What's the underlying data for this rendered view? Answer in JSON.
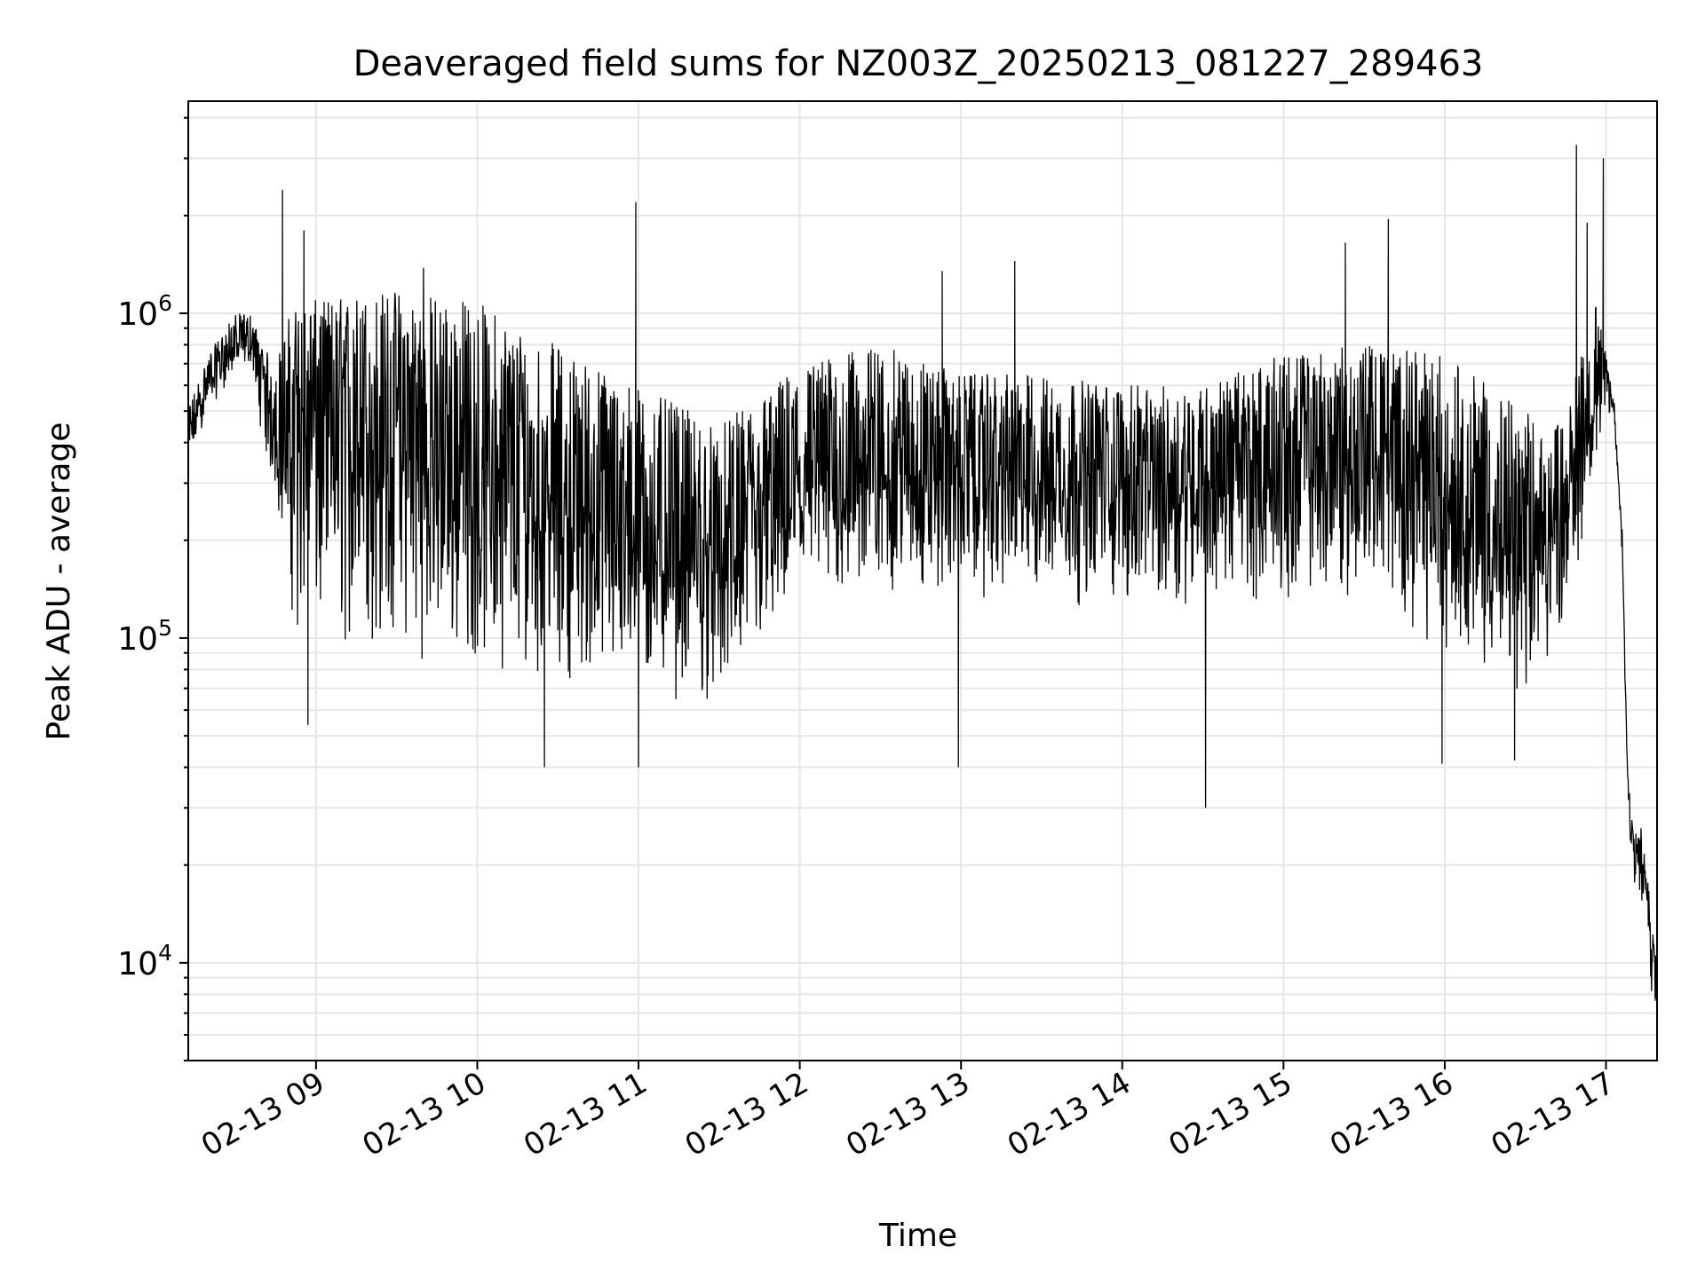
{
  "chart_data": {
    "type": "line",
    "title": "Deaveraged field sums for NZ003Z_20250213_081227_289463",
    "xlabel": "Time",
    "ylabel": "Peak ADU - average",
    "yscale": "log",
    "ylim": [
      5000,
      4500000
    ],
    "xlim": [
      "2025-02-13T08:12:27",
      "2025-02-13T17:19:00"
    ],
    "x_ticks": [
      {
        "value": "2025-02-13T09:00",
        "label": "02-13 09"
      },
      {
        "value": "2025-02-13T10:00",
        "label": "02-13 10"
      },
      {
        "value": "2025-02-13T11:00",
        "label": "02-13 11"
      },
      {
        "value": "2025-02-13T12:00",
        "label": "02-13 12"
      },
      {
        "value": "2025-02-13T13:00",
        "label": "02-13 13"
      },
      {
        "value": "2025-02-13T14:00",
        "label": "02-13 14"
      },
      {
        "value": "2025-02-13T15:00",
        "label": "02-13 15"
      },
      {
        "value": "2025-02-13T16:00",
        "label": "02-13 16"
      },
      {
        "value": "2025-02-13T17:00",
        "label": "02-13 17"
      }
    ],
    "y_ticks": [
      {
        "value": 10000,
        "base": "10",
        "exp": "4"
      },
      {
        "value": 100000,
        "base": "10",
        "exp": "5"
      },
      {
        "value": 1000000,
        "base": "10",
        "exp": "6"
      }
    ],
    "grid": true,
    "line_color": "#000000",
    "grid_color": "#e6e6e6",
    "series": [
      {
        "x": [
          "2025-02-13T08:12:27",
          "2025-02-13T08:20",
          "2025-02-13T08:30",
          "2025-02-13T08:36",
          "2025-02-13T08:40",
          "2025-02-13T08:45",
          "2025-02-13T08:50",
          "2025-02-13T08:52",
          "2025-02-13T09:00",
          "2025-02-13T09:30",
          "2025-02-13T10:00",
          "2025-02-13T10:30",
          "2025-02-13T11:00",
          "2025-02-13T11:30",
          "2025-02-13T12:00",
          "2025-02-13T12:30",
          "2025-02-13T13:00",
          "2025-02-13T13:30",
          "2025-02-13T14:00",
          "2025-02-13T14:30",
          "2025-02-13T15:00",
          "2025-02-13T15:30",
          "2025-02-13T16:00",
          "2025-02-13T16:30",
          "2025-02-13T16:45",
          "2025-02-13T16:55",
          "2025-02-13T17:00",
          "2025-02-13T17:03",
          "2025-02-13T17:06",
          "2025-02-13T17:08",
          "2025-02-13T17:10",
          "2025-02-13T17:14",
          "2025-02-13T17:18"
        ],
        "y": [
          400000,
          620000,
          800000,
          800000,
          600000,
          450000,
          350000,
          500000,
          480000,
          400000,
          300000,
          250000,
          200000,
          160000,
          290000,
          330000,
          320000,
          310000,
          300000,
          310000,
          320000,
          350000,
          280000,
          170000,
          250000,
          500000,
          650000,
          500000,
          200000,
          40000,
          25000,
          20000,
          9000
        ],
        "y_low": [
          330000,
          500000,
          650000,
          700000,
          400000,
          250000,
          150000,
          90000,
          80000,
          85000,
          80000,
          75000,
          65000,
          60000,
          120000,
          130000,
          130000,
          125000,
          120000,
          125000,
          130000,
          130000,
          90000,
          65000,
          100000,
          300000,
          500000,
          450000,
          180000,
          30000,
          17000,
          12000,
          6500
        ],
        "y_high": [
          520000,
          750000,
          1000000,
          1000000,
          800000,
          700000,
          1000000,
          1050000,
          1100000,
          1200000,
          1100000,
          800000,
          600000,
          450000,
          700000,
          800000,
          650000,
          650000,
          600000,
          600000,
          750000,
          800000,
          750000,
          500000,
          450000,
          1200000,
          750000,
          550000,
          220000,
          35000,
          26000,
          26000,
          11000
        ]
      }
    ],
    "spikes": [
      {
        "x": "2025-02-13T08:47:30",
        "y": 2400000
      },
      {
        "x": "2025-02-13T08:55:30",
        "y": 1800000
      },
      {
        "x": "2025-02-13T09:40",
        "y": 1380000
      },
      {
        "x": "2025-02-13T10:59",
        "y": 2200000
      },
      {
        "x": "2025-02-13T12:53",
        "y": 1350000
      },
      {
        "x": "2025-02-13T13:20",
        "y": 1450000
      },
      {
        "x": "2025-02-13T15:23",
        "y": 1650000
      },
      {
        "x": "2025-02-13T15:39",
        "y": 1950000
      },
      {
        "x": "2025-02-13T16:49",
        "y": 3300000
      },
      {
        "x": "2025-02-13T16:59",
        "y": 3000000
      },
      {
        "x": "2025-02-13T16:53",
        "y": 1900000
      },
      {
        "x": "2025-02-13T10:25",
        "y": 40000
      },
      {
        "x": "2025-02-13T14:31",
        "y": 30000
      },
      {
        "x": "2025-02-13T12:59",
        "y": 40000
      },
      {
        "x": "2025-02-13T08:57",
        "y": 54000
      },
      {
        "x": "2025-02-13T11:00",
        "y": 40000
      },
      {
        "x": "2025-02-13T16:26",
        "y": 42000
      },
      {
        "x": "2025-02-13T15:59",
        "y": 41000
      }
    ]
  }
}
